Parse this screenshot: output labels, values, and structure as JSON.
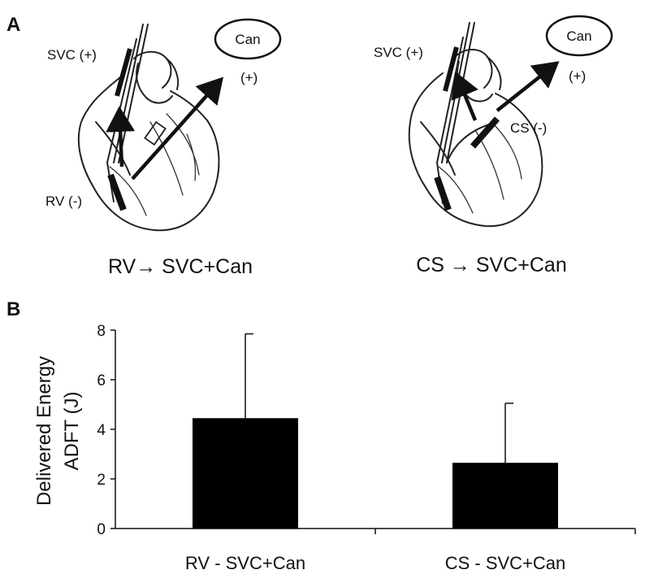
{
  "panel_a": {
    "letter": "A",
    "left": {
      "svc_label": "SVC (+)",
      "can_label": "Can",
      "can_polarity": "(+)",
      "rv_label": "RV (-)",
      "caption": "RV→ SVC+Can"
    },
    "right": {
      "svc_label": "SVC (+)",
      "can_label": "Can",
      "can_polarity": "(+)",
      "cs_label": "CS (-)",
      "caption": "CS → SVC+Can"
    }
  },
  "panel_b": {
    "letter": "B"
  },
  "chart_data": {
    "type": "bar",
    "categories": [
      "RV - SVC+Can",
      "CS - SVC+Can"
    ],
    "values": [
      4.45,
      2.65
    ],
    "error_upper": [
      3.4,
      2.4
    ],
    "ylabel_line1": "Delivered Energy",
    "ylabel_line2": "ADFT (J)",
    "ylim": [
      0,
      8
    ],
    "yticks": [
      "0",
      "2",
      "4",
      "6",
      "8"
    ],
    "bar_color": "#000000",
    "grid": false
  }
}
